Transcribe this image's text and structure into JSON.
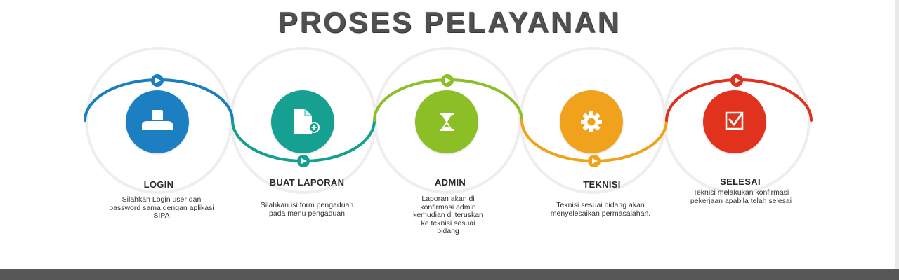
{
  "title": "PROSES PELAYANAN",
  "steps": [
    {
      "label": "LOGIN",
      "description": "Silahkan Login user dan password sama dengan aplikasi SIPA",
      "color": "#1a7fc1",
      "icon": "user-icon"
    },
    {
      "label": "BUAT LAPORAN",
      "description": "Silahkan isi form pengaduan pada menu pengaduan",
      "color": "#13a091",
      "icon": "document-add-icon"
    },
    {
      "label": "ADMIN",
      "description": "Laporan akan di konfirmasi admin kemudian di teruskan ke teknisi sesuai bidang",
      "color": "#8cbf26",
      "icon": "hourglass-icon"
    },
    {
      "label": "TEKNISI",
      "description": "Teknisi sesuai bidang akan menyelesaikan permasalahan.",
      "color": "#f0a21a",
      "icon": "gear-icon"
    },
    {
      "label": "SELESAI",
      "description": "Teknisi melakukan konfirmasi pekerjaan apabila telah selesai",
      "color": "#e0301e",
      "icon": "checkbox-icon"
    }
  ]
}
